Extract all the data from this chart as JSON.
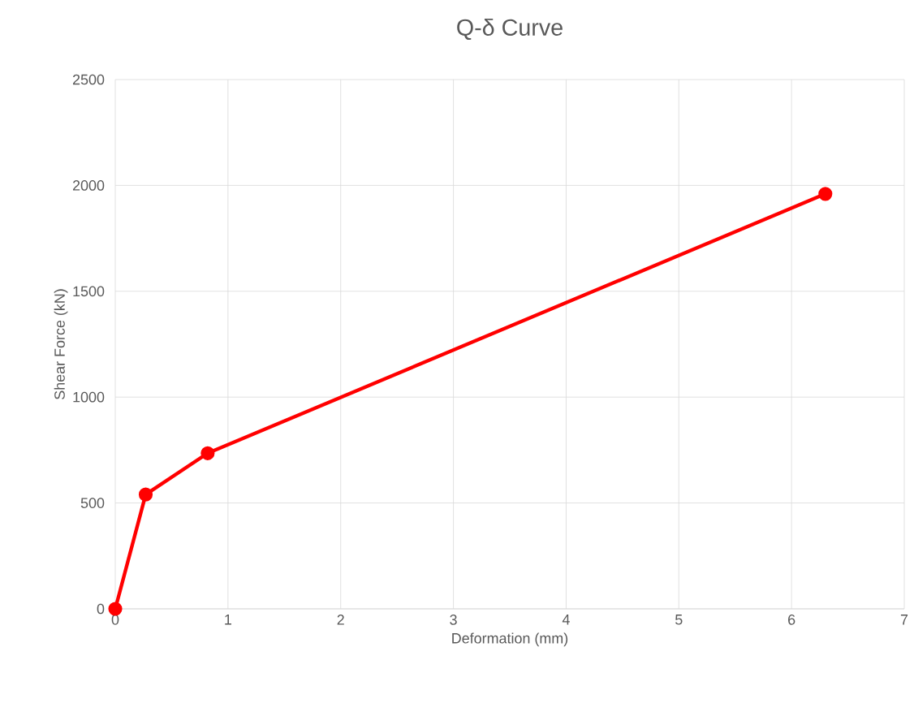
{
  "chart_data": {
    "type": "line",
    "title": "Q-δ Curve",
    "xlabel": "Deformation (mm)",
    "ylabel": "Shear Force (kN)",
    "x": [
      0,
      0.27,
      0.82,
      6.3
    ],
    "series": [
      {
        "color": "#ff0000",
        "values": [
          0,
          540,
          735,
          1960
        ]
      }
    ],
    "xlim": [
      0,
      7
    ],
    "xticks": [
      0,
      1,
      2,
      3,
      4,
      5,
      6,
      7
    ],
    "ylim": [
      0,
      2500
    ],
    "yticks": [
      0,
      500,
      1000,
      1500,
      2000,
      2500
    ],
    "grid": true,
    "marker": "circle",
    "line_style": "solid"
  }
}
